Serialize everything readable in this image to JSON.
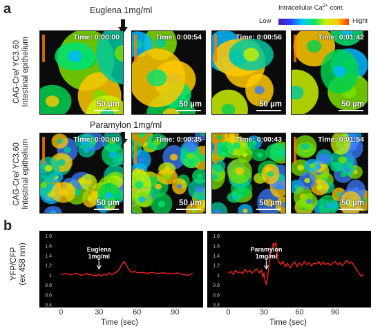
{
  "panel_a": {
    "letter": "a",
    "euglena_label": "Euglena 1mg/ml",
    "paramylon_label": "Paramylon 1mg/ml",
    "row_label_line1": "CAG-Cre/ YC3.60",
    "row_label_line2": "Intestinal epithelium",
    "legend": {
      "title": "Intracellular  Ca",
      "title_sup": "2+",
      "title_suffix": " cont.",
      "low": "Low",
      "high": "Hight",
      "gradient_colors": [
        "#4b1fa0",
        "#2a3cff",
        "#00c8ff",
        "#00e070",
        "#c8f000",
        "#ffc800",
        "#ff3a00"
      ]
    },
    "row1_times": [
      "Time: 0:00:00",
      "Time: 0:00:54",
      "Time: 0:00:56",
      "Time: 0:01:42"
    ],
    "row2_times": [
      "Time: 0:00:00",
      "Time: 0:00:35",
      "Time: 0:00:43",
      "Time: 0:01:54"
    ],
    "scale_label": "50 µm"
  },
  "panel_b": {
    "letter": "b",
    "ylabel_line1": "YFP/CFP",
    "ylabel_line2": "(ex 458 nm)",
    "xlabel": "Time (sec)"
  },
  "chart_data": [
    {
      "type": "line",
      "xlabel": "Time (sec)",
      "ylabel": "YFP/CFP (ex 458 nm)",
      "xlim": [
        -5,
        110
      ],
      "ylim": [
        0.4,
        1.85
      ],
      "xticks": [
        0,
        30,
        60,
        90
      ],
      "yticks": [
        0.4,
        0.6,
        0.8,
        1,
        1.2,
        1.4,
        1.6,
        1.8
      ],
      "annotation": {
        "text_line1": "Euglena",
        "text_line2": "1mg/ml",
        "x": 30
      },
      "series": [
        {
          "color": "#ff2020",
          "x": [
            0,
            4,
            8,
            12,
            16,
            20,
            24,
            28,
            30,
            32,
            34,
            36,
            38,
            40,
            42,
            44,
            46,
            48,
            50,
            52,
            54,
            56,
            58,
            60,
            64,
            68,
            72,
            76,
            80,
            84,
            88,
            92,
            96,
            100,
            104
          ],
          "y": [
            1.02,
            1.03,
            1.01,
            1.04,
            1.0,
            1.03,
            1.01,
            0.99,
            1.02,
            0.98,
            1.03,
            1.0,
            1.05,
            1.01,
            1.04,
            1.07,
            1.12,
            1.22,
            1.28,
            1.18,
            1.1,
            1.06,
            1.08,
            1.05,
            1.06,
            1.04,
            1.06,
            1.03,
            1.05,
            1.04,
            1.03,
            1.05,
            1.02,
            1.0,
            1.04
          ]
        }
      ]
    },
    {
      "type": "line",
      "xlabel": "Time (sec)",
      "ylabel": "",
      "xlim": [
        -5,
        118
      ],
      "ylim": [
        0.4,
        1.85
      ],
      "xticks": [
        0,
        30,
        60,
        90
      ],
      "yticks": [
        0.4,
        0.6,
        0.8,
        1,
        1.2,
        1.4,
        1.6,
        1.8
      ],
      "annotation": {
        "text_line1": "Paramylon",
        "text_line2": "1mg/ml",
        "x": 32
      },
      "series": [
        {
          "color": "#ff2020",
          "x": [
            0,
            2,
            4,
            6,
            8,
            10,
            12,
            14,
            16,
            18,
            20,
            22,
            24,
            26,
            28,
            29,
            30,
            31,
            32,
            33,
            34,
            35,
            36,
            37,
            38,
            39,
            40,
            41,
            42,
            44,
            46,
            48,
            50,
            52,
            54,
            56,
            58,
            60,
            62,
            64,
            66,
            68,
            70,
            72,
            74,
            76,
            78,
            80,
            82,
            84,
            86,
            88,
            90,
            92,
            94,
            96,
            98,
            100,
            102,
            104,
            106,
            108,
            110,
            112,
            114
          ],
          "y": [
            1.04,
            1.08,
            1.02,
            1.1,
            1.05,
            1.07,
            1.03,
            1.12,
            1.06,
            1.1,
            1.04,
            1.09,
            1.13,
            1.05,
            1.1,
            0.95,
            1.05,
            0.88,
            0.82,
            0.95,
            1.15,
            1.35,
            1.5,
            1.58,
            1.65,
            1.6,
            1.67,
            1.48,
            1.3,
            1.22,
            1.28,
            1.18,
            1.24,
            1.15,
            1.22,
            1.27,
            1.18,
            1.25,
            1.2,
            1.28,
            1.22,
            1.26,
            1.19,
            1.25,
            1.23,
            1.28,
            1.21,
            1.27,
            1.22,
            1.25,
            1.2,
            1.24,
            1.28,
            1.22,
            1.26,
            1.2,
            1.25,
            1.3,
            1.24,
            1.27,
            1.2,
            1.12,
            1.05,
            0.98,
            1.02
          ]
        }
      ]
    }
  ]
}
